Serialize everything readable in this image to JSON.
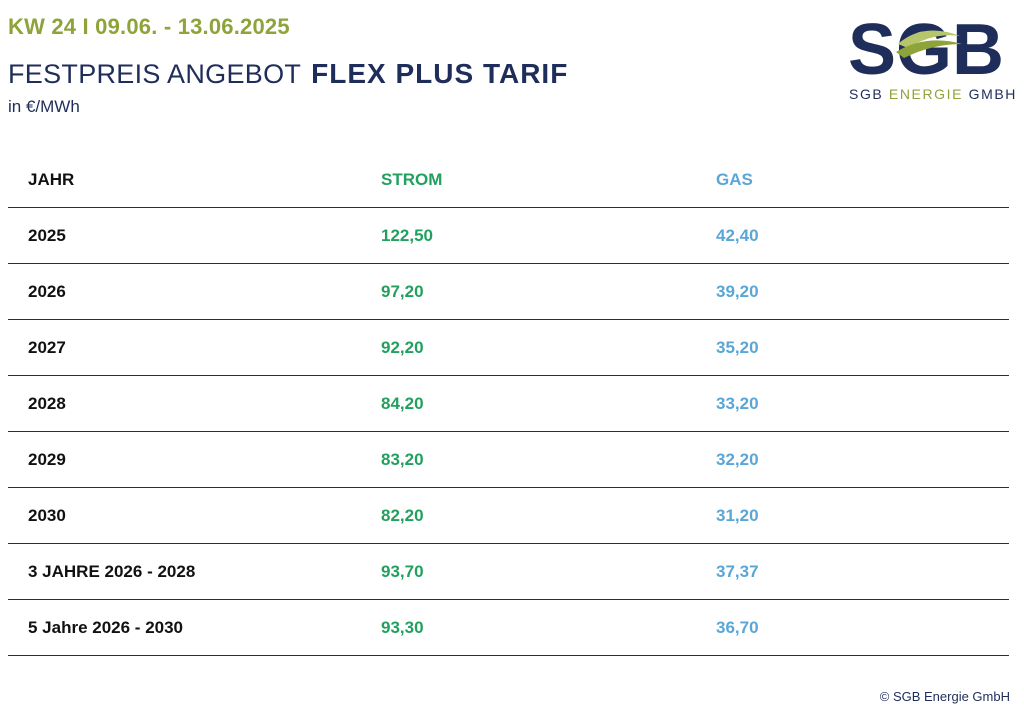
{
  "header": {
    "week": "KW 24 I 09.06. - 13.06.2025",
    "title_light": "FESTPREIS ANGEBOT",
    "title_bold": "FLEX PLUS TARIF",
    "unit": "in €/MWh"
  },
  "logo": {
    "wordmark": "SGB",
    "subline_a": "SGB",
    "subline_b": "ENERGIE",
    "subline_c": "GMBH",
    "colors": {
      "navy": "#1f2d5a",
      "green": "#8ea33a",
      "lightgreen": "#b7c66a"
    }
  },
  "table": {
    "headers": {
      "year": "JAHR",
      "strom": "STROM",
      "gas": "GAS"
    },
    "rows": [
      {
        "year": "2025",
        "strom": "122,50",
        "gas": "42,40"
      },
      {
        "year": "2026",
        "strom": "97,20",
        "gas": "39,20"
      },
      {
        "year": "2027",
        "strom": "92,20",
        "gas": "35,20"
      },
      {
        "year": "2028",
        "strom": "84,20",
        "gas": "33,20"
      },
      {
        "year": "2029",
        "strom": "83,20",
        "gas": "32,20"
      },
      {
        "year": "2030",
        "strom": "82,20",
        "gas": "31,20"
      },
      {
        "year": "3 JAHRE 2026 - 2028",
        "strom": "93,70",
        "gas": "37,37"
      },
      {
        "year": "5 Jahre 2026 - 2030",
        "strom": "93,30",
        "gas": "36,70"
      }
    ],
    "colors": {
      "strom": "#22a060",
      "gas": "#5aa6d6",
      "rule": "#1f2d5a"
    }
  },
  "footer": {
    "copyright": "© SGB Energie GmbH"
  }
}
